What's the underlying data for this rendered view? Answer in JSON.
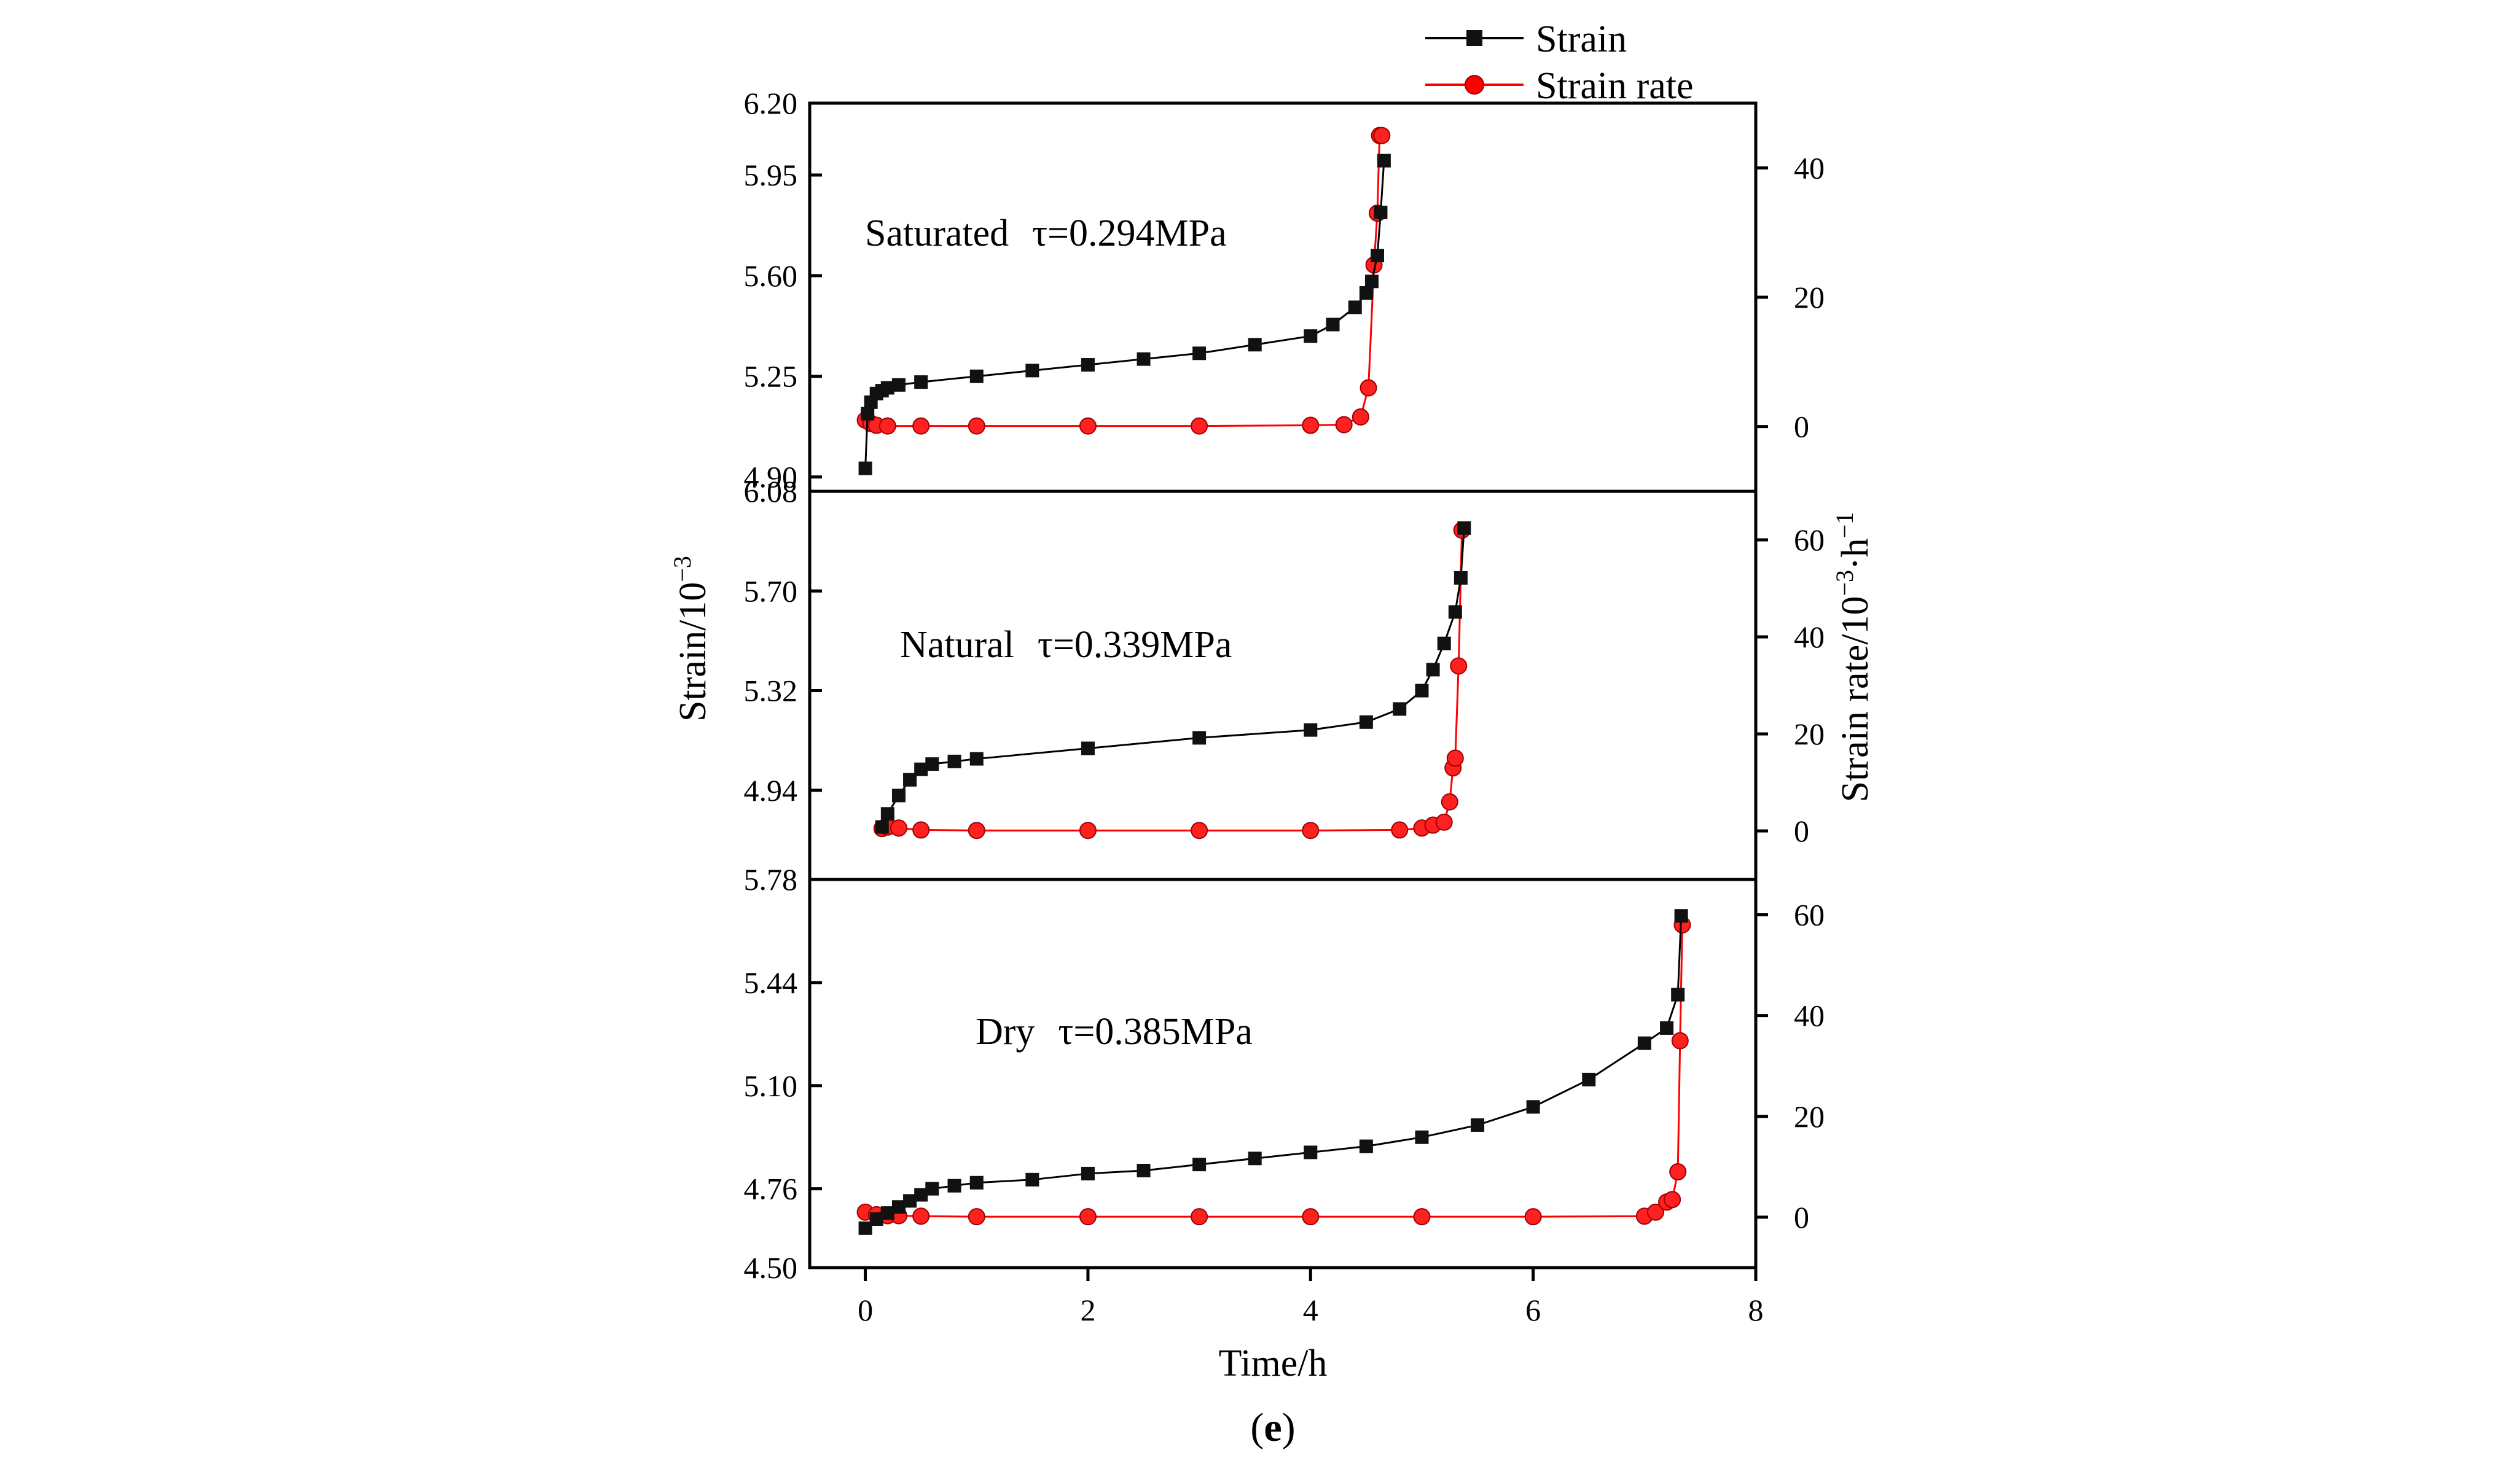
{
  "chart_data": {
    "type": "line",
    "figure_label": "e",
    "x_axis": {
      "label": "Time/h",
      "range": [
        -0.5,
        8
      ],
      "ticks": [
        0,
        2,
        4,
        6,
        8
      ]
    },
    "y_left_label": "Strain/10",
    "y_left_label_sup": "−3",
    "y_right_label_main": "Strain rate/10",
    "y_right_label_sup1": "−3",
    "y_right_label_mid": "·h",
    "y_right_label_sup2": "−1",
    "legend": [
      {
        "name": "Strain",
        "color": "#000000",
        "marker": "square"
      },
      {
        "name": "Strain rate",
        "color": "#ff0000",
        "marker": "circle"
      }
    ],
    "panels": [
      {
        "condition": "Saturated",
        "stress_label": "τ=0.294MPa",
        "strain_range": [
          4.85,
          6.2
        ],
        "strain_ticks": [
          "6.20",
          "5.95",
          "5.60",
          "5.25",
          "4.90"
        ],
        "rate_range": [
          -10,
          50
        ],
        "rate_ticks": [
          40,
          20,
          0
        ],
        "strain": {
          "x": [
            0.0,
            0.02,
            0.05,
            0.1,
            0.15,
            0.2,
            0.3,
            0.5,
            1.0,
            1.5,
            2.0,
            2.5,
            3.0,
            3.5,
            4.0,
            4.2,
            4.4,
            4.5,
            4.55,
            4.6,
            4.63,
            4.66
          ],
          "y": [
            4.93,
            5.12,
            5.16,
            5.19,
            5.2,
            5.21,
            5.22,
            5.23,
            5.25,
            5.27,
            5.29,
            5.31,
            5.33,
            5.36,
            5.39,
            5.43,
            5.49,
            5.54,
            5.58,
            5.67,
            5.82,
            6.0
          ]
        },
        "strain_rate": {
          "x": [
            0.0,
            0.05,
            0.1,
            0.2,
            0.5,
            1.0,
            2.0,
            3.0,
            4.0,
            4.3,
            4.45,
            4.52,
            4.57,
            4.6,
            4.62,
            4.64
          ],
          "y": [
            1.0,
            0.5,
            0.2,
            0.1,
            0.1,
            0.1,
            0.1,
            0.1,
            0.2,
            0.3,
            1.5,
            6.0,
            25.0,
            33.0,
            45.0,
            45.0
          ]
        }
      },
      {
        "condition": "Natural",
        "stress_label": "τ=0.339MPa",
        "strain_range": [
          4.6,
          6.08
        ],
        "strain_ticks": [
          "6.08",
          "5.70",
          "5.32",
          "4.94"
        ],
        "rate_range": [
          -10,
          70
        ],
        "rate_ticks": [
          60,
          40,
          20,
          0
        ],
        "strain": {
          "x": [
            0.15,
            0.2,
            0.3,
            0.4,
            0.5,
            0.6,
            0.8,
            1.0,
            2.0,
            3.0,
            4.0,
            4.5,
            4.8,
            5.0,
            5.1,
            5.2,
            5.3,
            5.35,
            5.38
          ],
          "y": [
            4.8,
            4.85,
            4.92,
            4.98,
            5.02,
            5.04,
            5.05,
            5.06,
            5.1,
            5.14,
            5.17,
            5.2,
            5.25,
            5.32,
            5.4,
            5.5,
            5.62,
            5.75,
            5.94
          ]
        },
        "strain_rate": {
          "x": [
            0.15,
            0.2,
            0.3,
            0.5,
            1.0,
            2.0,
            3.0,
            4.0,
            4.8,
            5.0,
            5.1,
            5.2,
            5.25,
            5.28,
            5.3,
            5.33,
            5.36
          ],
          "y": [
            0.5,
            0.8,
            0.6,
            0.2,
            0.1,
            0.1,
            0.1,
            0.1,
            0.2,
            0.6,
            1.2,
            1.8,
            6.0,
            13.0,
            15.0,
            34.0,
            62.0
          ]
        }
      },
      {
        "condition": "Dry",
        "stress_label": "τ=0.385MPa",
        "strain_range": [
          4.5,
          5.78
        ],
        "strain_ticks": [
          "5.78",
          "5.44",
          "5.10",
          "4.76",
          "4.50"
        ],
        "rate_range": [
          -10,
          67
        ],
        "rate_ticks": [
          60,
          40,
          20,
          0
        ],
        "strain": {
          "x": [
            0.0,
            0.1,
            0.2,
            0.3,
            0.4,
            0.5,
            0.6,
            0.8,
            1.0,
            1.5,
            2.0,
            2.5,
            3.0,
            3.5,
            4.0,
            4.5,
            5.0,
            5.5,
            6.0,
            6.5,
            7.0,
            7.2,
            7.3,
            7.33
          ],
          "y": [
            4.63,
            4.66,
            4.68,
            4.7,
            4.72,
            4.74,
            4.76,
            4.77,
            4.78,
            4.79,
            4.81,
            4.82,
            4.84,
            4.86,
            4.88,
            4.9,
            4.93,
            4.97,
            5.03,
            5.12,
            5.24,
            5.29,
            5.4,
            5.66
          ]
        },
        "strain_rate": {
          "x": [
            0.0,
            0.1,
            0.2,
            0.3,
            0.5,
            1.0,
            2.0,
            3.0,
            4.0,
            5.0,
            6.0,
            7.0,
            7.1,
            7.2,
            7.25,
            7.3,
            7.32,
            7.34
          ],
          "y": [
            1.0,
            0.5,
            0.3,
            0.3,
            0.2,
            0.1,
            0.1,
            0.1,
            0.1,
            0.1,
            0.1,
            0.2,
            1.0,
            3.0,
            3.5,
            9.0,
            35.0,
            58.0
          ]
        }
      }
    ]
  }
}
